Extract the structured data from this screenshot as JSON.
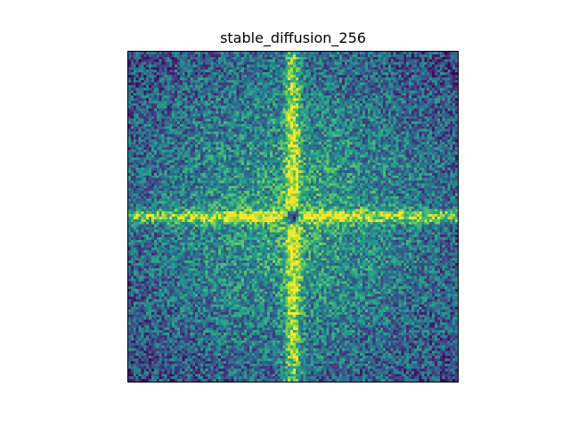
{
  "chart_data": {
    "type": "heatmap",
    "title": "stable_diffusion_256",
    "xlabel": "",
    "ylabel": "",
    "colormap": "viridis",
    "grid_size": [
      128,
      128
    ],
    "axis_ticks": false,
    "grid": false,
    "legend": "none",
    "description_of_values": {
      "center_value": "lowest (dark purple)",
      "horizontal_and_vertical_cross": "highest (yellow)",
      "near_cross": "high (green-yellow)",
      "corners": "low-medium (teal/blue with noise)"
    },
    "colors": {
      "low": "#440154",
      "mid_low": "#3b528b",
      "mid": "#21918c",
      "mid_high": "#5ec962",
      "high": "#fde725"
    }
  }
}
